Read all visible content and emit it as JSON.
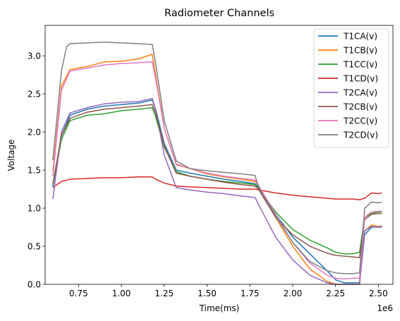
{
  "chart_data": {
    "type": "line",
    "title": "Radiometer Channels",
    "xlabel": "Time(ms)",
    "ylabel": "Voltage",
    "x_offset_label": "1e6",
    "xlim": [
      0.555,
      2.585
    ],
    "ylim": [
      0.0,
      3.4
    ],
    "x_ticks": [
      0.75,
      1.0,
      1.25,
      1.5,
      1.75,
      2.0,
      2.25,
      2.5
    ],
    "x_tick_labels": [
      "0.75",
      "1.00",
      "1.25",
      "1.50",
      "1.75",
      "2.00",
      "2.25",
      "2.50"
    ],
    "y_ticks": [
      0.0,
      0.5,
      1.0,
      1.5,
      2.0,
      2.5,
      3.0
    ],
    "y_tick_labels": [
      "0.0",
      "0.5",
      "1.0",
      "1.5",
      "2.0",
      "2.5",
      "3.0"
    ],
    "grid": false,
    "legend_position": "top-right",
    "series": [
      {
        "name": "T1CA(v)",
        "color": "#1f77b4",
        "x": [
          0.6,
          0.65,
          0.7,
          0.8,
          0.9,
          1.0,
          1.1,
          1.18,
          1.2,
          1.25,
          1.32,
          1.4,
          1.5,
          1.6,
          1.7,
          1.78,
          1.8,
          1.9,
          2.0,
          2.1,
          2.2,
          2.25,
          2.3,
          2.35,
          2.39,
          2.42,
          2.46,
          2.5,
          2.52
        ],
        "y": [
          1.28,
          1.95,
          2.22,
          2.3,
          2.34,
          2.36,
          2.38,
          2.42,
          2.3,
          1.85,
          1.5,
          1.46,
          1.42,
          1.38,
          1.35,
          1.32,
          1.28,
          0.92,
          0.62,
          0.4,
          0.18,
          0.06,
          0.02,
          0.02,
          0.02,
          0.65,
          0.75,
          0.75,
          0.75
        ]
      },
      {
        "name": "T1CB(v)",
        "color": "#ff7f0e",
        "x": [
          0.6,
          0.65,
          0.7,
          0.8,
          0.9,
          1.0,
          1.1,
          1.18,
          1.2,
          1.25,
          1.32,
          1.4,
          1.5,
          1.6,
          1.7,
          1.78,
          1.8,
          1.9,
          2.0,
          2.1,
          2.2,
          2.25,
          2.3,
          2.35,
          2.39,
          2.42,
          2.46,
          2.5,
          2.52
        ],
        "y": [
          1.48,
          2.6,
          2.82,
          2.86,
          2.92,
          2.93,
          2.96,
          3.02,
          2.75,
          2.05,
          1.57,
          1.52,
          1.45,
          1.41,
          1.38,
          1.35,
          1.3,
          0.88,
          0.5,
          0.2,
          0.04,
          0.0,
          0.0,
          0.0,
          0.0,
          0.7,
          0.78,
          0.76,
          0.77
        ]
      },
      {
        "name": "T1CC(v)",
        "color": "#2ca02c",
        "x": [
          0.6,
          0.65,
          0.7,
          0.8,
          0.9,
          1.0,
          1.1,
          1.18,
          1.2,
          1.25,
          1.32,
          1.4,
          1.5,
          1.6,
          1.7,
          1.78,
          1.8,
          1.9,
          2.0,
          2.1,
          2.2,
          2.25,
          2.3,
          2.35,
          2.39,
          2.42,
          2.46,
          2.5,
          2.52
        ],
        "y": [
          1.3,
          1.9,
          2.15,
          2.22,
          2.24,
          2.28,
          2.3,
          2.32,
          2.2,
          1.8,
          1.48,
          1.42,
          1.38,
          1.35,
          1.33,
          1.31,
          1.26,
          0.95,
          0.72,
          0.58,
          0.48,
          0.42,
          0.4,
          0.4,
          0.42,
          0.88,
          0.93,
          0.95,
          0.95
        ]
      },
      {
        "name": "T1CD(v)",
        "color": "#d62728",
        "x": [
          0.6,
          0.65,
          0.7,
          0.8,
          0.9,
          1.0,
          1.1,
          1.18,
          1.2,
          1.25,
          1.32,
          1.4,
          1.5,
          1.6,
          1.7,
          1.78,
          1.8,
          1.9,
          2.0,
          2.1,
          2.2,
          2.25,
          2.3,
          2.35,
          2.39,
          2.42,
          2.46,
          2.5,
          2.52
        ],
        "y": [
          1.27,
          1.35,
          1.38,
          1.39,
          1.4,
          1.4,
          1.41,
          1.41,
          1.38,
          1.33,
          1.29,
          1.28,
          1.27,
          1.26,
          1.25,
          1.25,
          1.24,
          1.2,
          1.17,
          1.15,
          1.13,
          1.12,
          1.12,
          1.12,
          1.11,
          1.13,
          1.2,
          1.19,
          1.2
        ]
      },
      {
        "name": "T2CA(v)",
        "color": "#9467bd",
        "x": [
          0.6,
          0.65,
          0.7,
          0.8,
          0.9,
          1.0,
          1.1,
          1.18,
          1.2,
          1.25,
          1.32,
          1.4,
          1.5,
          1.6,
          1.7,
          1.78,
          1.8,
          1.9,
          2.0,
          2.1,
          2.2,
          2.25,
          2.3,
          2.35,
          2.39,
          2.42,
          2.46,
          2.5,
          2.52
        ],
        "y": [
          1.12,
          2.0,
          2.25,
          2.32,
          2.37,
          2.39,
          2.4,
          2.44,
          2.3,
          1.7,
          1.27,
          1.24,
          1.21,
          1.19,
          1.16,
          1.14,
          1.05,
          0.62,
          0.32,
          0.12,
          0.02,
          0.0,
          0.0,
          0.0,
          0.0,
          0.7,
          0.76,
          0.75,
          0.76
        ]
      },
      {
        "name": "T2CB(v)",
        "color": "#8c564b",
        "x": [
          0.6,
          0.65,
          0.7,
          0.8,
          0.9,
          1.0,
          1.1,
          1.18,
          1.2,
          1.25,
          1.32,
          1.4,
          1.5,
          1.6,
          1.7,
          1.78,
          1.8,
          1.9,
          2.0,
          2.1,
          2.2,
          2.25,
          2.3,
          2.35,
          2.39,
          2.42,
          2.46,
          2.5,
          2.52
        ],
        "y": [
          1.32,
          1.95,
          2.18,
          2.26,
          2.3,
          2.32,
          2.34,
          2.36,
          2.25,
          1.82,
          1.46,
          1.42,
          1.38,
          1.34,
          1.31,
          1.29,
          1.25,
          0.88,
          0.65,
          0.5,
          0.41,
          0.38,
          0.37,
          0.36,
          0.35,
          0.85,
          0.92,
          0.93,
          0.93
        ]
      },
      {
        "name": "T2CC(v)",
        "color": "#e377c2",
        "x": [
          0.6,
          0.65,
          0.7,
          0.8,
          0.9,
          1.0,
          1.1,
          1.18,
          1.2,
          1.25,
          1.32,
          1.4,
          1.5,
          1.6,
          1.7,
          1.78,
          1.8,
          1.9,
          2.0,
          2.1,
          2.2,
          2.25,
          2.3,
          2.35,
          2.39,
          2.42,
          2.46,
          2.5,
          2.52
        ],
        "y": [
          1.42,
          2.55,
          2.8,
          2.84,
          2.88,
          2.9,
          2.91,
          2.92,
          2.7,
          2.05,
          1.58,
          1.52,
          1.46,
          1.42,
          1.39,
          1.37,
          1.3,
          0.92,
          0.55,
          0.28,
          0.12,
          0.08,
          0.07,
          0.08,
          0.08,
          0.88,
          0.95,
          0.96,
          0.96
        ]
      },
      {
        "name": "T2CD(v)",
        "color": "#7f7f7f",
        "x": [
          0.6,
          0.65,
          0.68,
          0.7,
          0.8,
          0.9,
          1.0,
          1.1,
          1.18,
          1.2,
          1.25,
          1.32,
          1.4,
          1.5,
          1.6,
          1.7,
          1.78,
          1.8,
          1.9,
          2.0,
          2.1,
          2.2,
          2.25,
          2.3,
          2.35,
          2.39,
          2.42,
          2.46,
          2.5,
          2.52
        ],
        "y": [
          1.63,
          2.8,
          3.12,
          3.16,
          3.17,
          3.18,
          3.17,
          3.16,
          3.15,
          2.9,
          2.15,
          1.62,
          1.52,
          1.49,
          1.47,
          1.45,
          1.43,
          1.28,
          0.9,
          0.55,
          0.3,
          0.18,
          0.15,
          0.14,
          0.14,
          0.15,
          1.0,
          1.08,
          1.07,
          1.08
        ]
      }
    ]
  }
}
